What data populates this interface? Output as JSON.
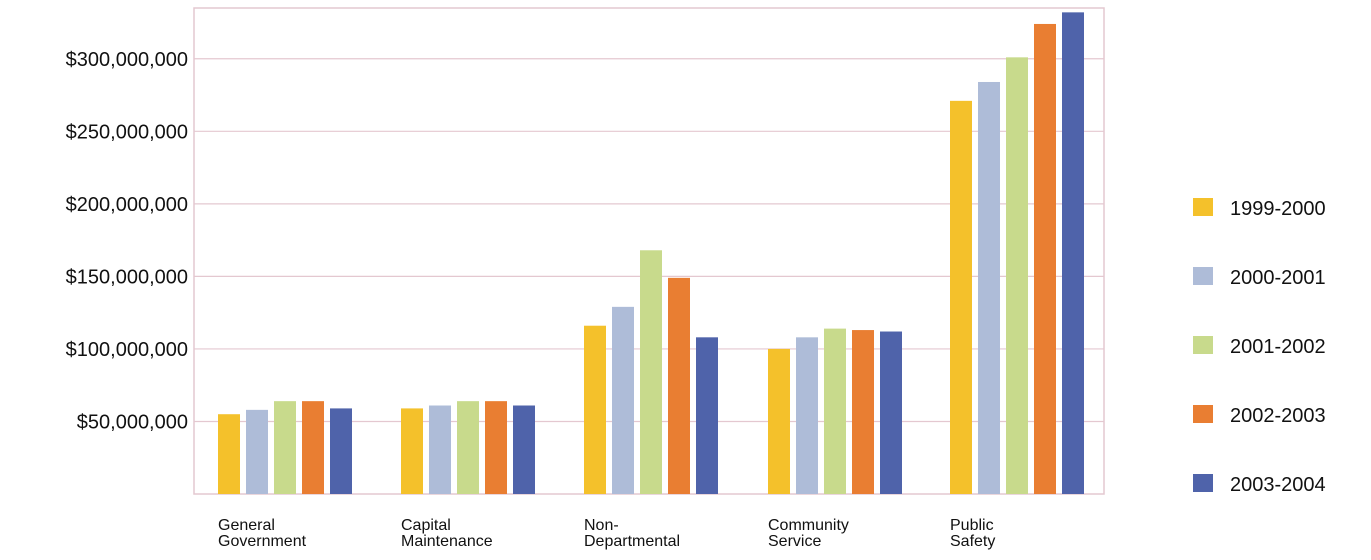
{
  "chart_data": {
    "type": "bar",
    "title": "",
    "xlabel": "",
    "ylabel": "",
    "ylim": [
      0,
      335000000
    ],
    "yticks": [
      {
        "value": 50000000,
        "label": "$50,000,000"
      },
      {
        "value": 100000000,
        "label": "$100,000,000"
      },
      {
        "value": 150000000,
        "label": "$150,000,000"
      },
      {
        "value": 200000000,
        "label": "$200,000,000"
      },
      {
        "value": 250000000,
        "label": "$250,000,000"
      },
      {
        "value": 300000000,
        "label": "$300,000,000"
      }
    ],
    "grid": true,
    "legend_position": "right",
    "categories": [
      [
        "General",
        "Government"
      ],
      [
        "Capital",
        "Maintenance"
      ],
      [
        "Non-",
        "Departmental"
      ],
      [
        "Community",
        "Service"
      ],
      [
        "Public",
        "Safety"
      ]
    ],
    "series": [
      {
        "name": "1999-2000",
        "color": "#F4C12B",
        "values": [
          55000000,
          59000000,
          116000000,
          100000000,
          271000000
        ]
      },
      {
        "name": "2000-2001",
        "color": "#AEBCD8",
        "values": [
          58000000,
          61000000,
          129000000,
          108000000,
          284000000
        ]
      },
      {
        "name": "2001-2002",
        "color": "#C8DA8C",
        "values": [
          64000000,
          64000000,
          168000000,
          114000000,
          301000000
        ]
      },
      {
        "name": "2002-2003",
        "color": "#E97E32",
        "values": [
          64000000,
          64000000,
          149000000,
          113000000,
          324000000
        ]
      },
      {
        "name": "2003-2004",
        "color": "#4F63AA",
        "values": [
          59000000,
          61000000,
          108000000,
          112000000,
          332000000
        ]
      }
    ]
  }
}
